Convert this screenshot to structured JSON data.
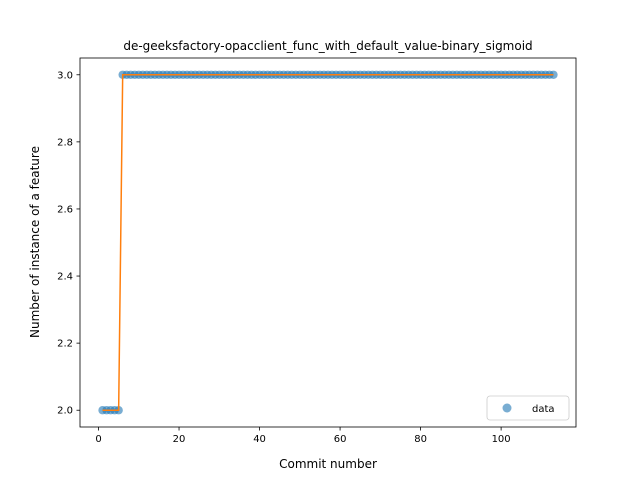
{
  "chart_data": {
    "type": "scatter",
    "title": "de-geeksfactory-opacclient_func_with_default_value-binary_sigmoid",
    "xlabel": "Commit number",
    "ylabel": "Number of instance of a feature",
    "xlim": [
      -4.6,
      118.6
    ],
    "ylim": [
      1.95,
      3.05
    ],
    "xticks": [
      0,
      20,
      40,
      60,
      80,
      100
    ],
    "yticks": [
      2.0,
      2.2,
      2.4,
      2.6,
      2.8,
      3.0
    ],
    "xtick_labels": [
      "0",
      "20",
      "40",
      "60",
      "80",
      "100"
    ],
    "ytick_labels": [
      "2.0",
      "2.2",
      "2.4",
      "2.6",
      "2.8",
      "3.0"
    ],
    "legend": {
      "entries": [
        "data"
      ],
      "placement": "lower-right"
    },
    "colors": {
      "points": "#1f77b4",
      "fit": "#ff7f0e"
    },
    "grid": false,
    "series": [
      {
        "name": "data",
        "kind": "points",
        "segments": [
          {
            "x_start": 1,
            "x_end": 5,
            "y": 2.0
          },
          {
            "x_start": 6,
            "x_end": 113,
            "y": 3.0
          }
        ]
      },
      {
        "kind": "line",
        "x": [
          1,
          5,
          6,
          113
        ],
        "y": [
          2.0,
          2.0,
          3.0,
          3.0
        ]
      }
    ]
  }
}
